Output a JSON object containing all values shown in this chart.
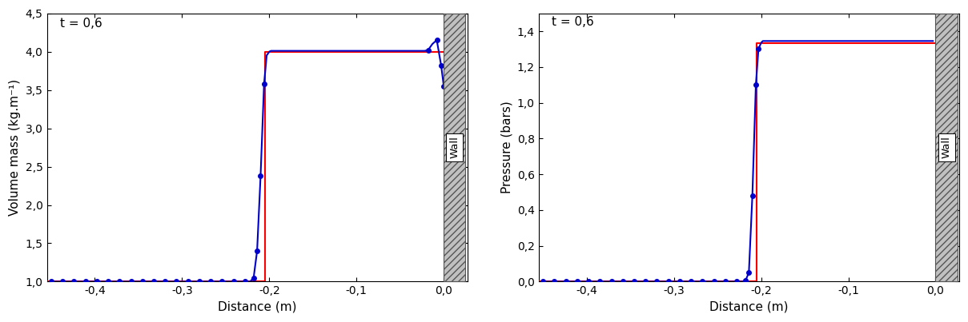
{
  "time_label": "t = 0,6",
  "plot1": {
    "ylabel": "Volume mass (kg.m⁻¹)",
    "xlabel": "Distance (m)",
    "ylim": [
      1.0,
      4.5
    ],
    "yticks": [
      1.0,
      1.5,
      2.0,
      2.5,
      3.0,
      3.5,
      4.0,
      4.5
    ],
    "ytick_labels": [
      "1,0",
      "1,5",
      "2,0",
      "2,5",
      "3,0",
      "3,5",
      "4,0",
      "4,5"
    ],
    "xticks": [
      -0.4,
      -0.3,
      -0.2,
      -0.1,
      0.0
    ],
    "xtick_labels": [
      "-0,4",
      "-0,3",
      "-0,2",
      "-0,1",
      "0,0"
    ],
    "xlim": [
      -0.455,
      0.03
    ]
  },
  "plot2": {
    "ylabel": "Pressure (bars)",
    "xlabel": "Distance (m)",
    "ylim": [
      0.0,
      1.5
    ],
    "yticks": [
      0.0,
      0.2,
      0.4,
      0.6,
      0.8,
      1.0,
      1.2,
      1.4
    ],
    "ytick_labels": [
      "0,0",
      "0,2",
      "0,4",
      "0,6",
      "0,8",
      "1,0",
      "1,2",
      "1,4"
    ],
    "xticks": [
      -0.4,
      -0.3,
      -0.2,
      -0.1,
      0.0
    ],
    "xtick_labels": [
      "-0,4",
      "-0,3",
      "-0,2",
      "-0,1",
      "0,0"
    ],
    "xlim": [
      -0.455,
      0.03
    ]
  },
  "analytical_color": "#ff0000",
  "numerical_color": "#0000cc",
  "background_color": "#ffffff",
  "line_width": 1.5,
  "marker_size": 4,
  "title_fontsize": 11,
  "label_fontsize": 11,
  "tick_fontsize": 10
}
